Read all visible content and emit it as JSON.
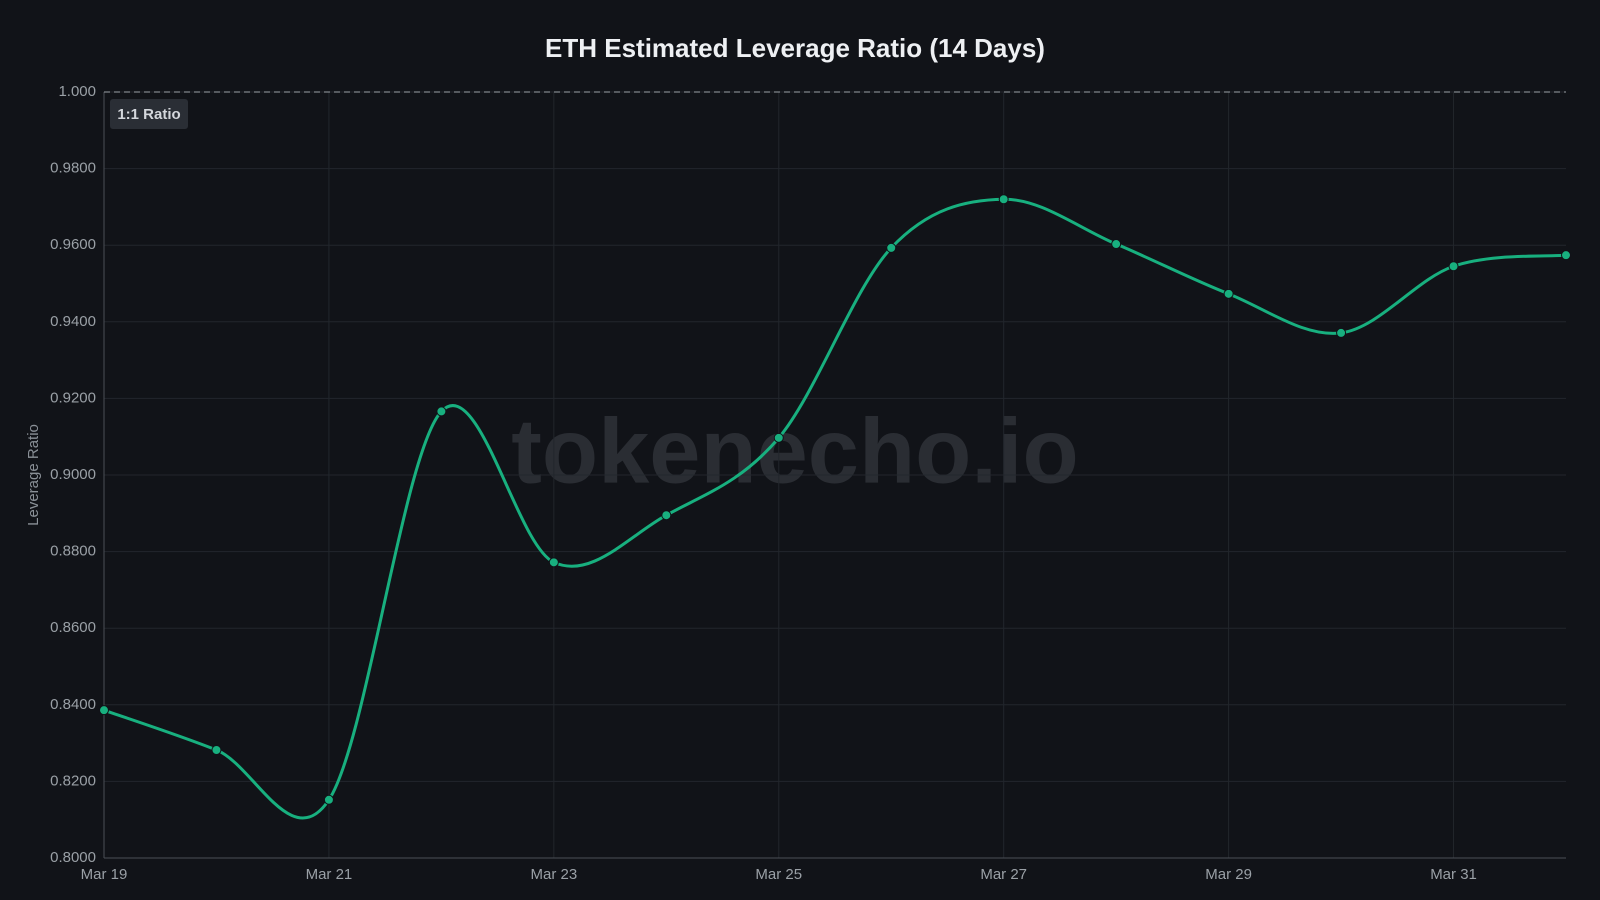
{
  "chart_data": {
    "type": "line",
    "title": "ETH Estimated Leverage Ratio (14 Days)",
    "y_label": "Leverage Ratio",
    "watermark": "tokenecho.io",
    "categories": [
      "Mar 19",
      null,
      "Mar 21",
      null,
      "Mar 23",
      null,
      "Mar 25",
      null,
      "Mar 27",
      null,
      "Mar 29",
      null,
      "Mar 31",
      null
    ],
    "series": [
      {
        "name": "Leverage Ratio",
        "color": "#18b07f",
        "values": [
          0.8386,
          0.8282,
          0.8152,
          0.9166,
          0.8772,
          0.8895,
          0.9097,
          0.9593,
          0.972,
          0.9603,
          0.9473,
          0.9371,
          0.9545,
          0.9574
        ]
      }
    ],
    "ylim": [
      0.8,
      1.0
    ],
    "yticks": [
      {
        "value": 0.8,
        "label": "0.8000"
      },
      {
        "value": 0.82,
        "label": "0.8200"
      },
      {
        "value": 0.84,
        "label": "0.8400"
      },
      {
        "value": 0.86,
        "label": "0.8600"
      },
      {
        "value": 0.88,
        "label": "0.8800"
      },
      {
        "value": 0.9,
        "label": "0.9000"
      },
      {
        "value": 0.92,
        "label": "0.9200"
      },
      {
        "value": 0.94,
        "label": "0.9400"
      },
      {
        "value": 0.96,
        "label": "0.9600"
      },
      {
        "value": 0.98,
        "label": "0.9800"
      },
      {
        "value": 1.0,
        "label": "1.000"
      }
    ],
    "reference_line": {
      "value": 1.0,
      "label": "1:1 Ratio"
    },
    "grid": true
  }
}
